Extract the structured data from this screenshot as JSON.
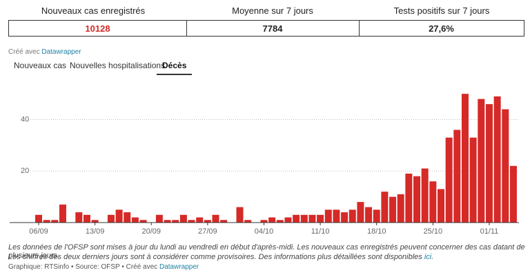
{
  "stats": {
    "headers": [
      "Nouveaux cas enregistrés",
      "Moyenne sur 7 jours",
      "Tests positifs sur 7 jours"
    ],
    "values": [
      "10128",
      "7784",
      "27,6%"
    ]
  },
  "credit": {
    "text": "Créé avec",
    "link": "Datawrapper"
  },
  "tabs": [
    "Nouveaux cas",
    "Nouvelles hospitalisations",
    "Décès"
  ],
  "active_tab": "Décès",
  "chart_data": {
    "type": "bar",
    "color": "#d52a27",
    "categories": [
      "06/09",
      null,
      null,
      null,
      null,
      null,
      null,
      "13/09",
      null,
      null,
      null,
      null,
      null,
      null,
      "20/09",
      null,
      null,
      null,
      null,
      null,
      null,
      "27/09",
      null,
      null,
      null,
      null,
      null,
      null,
      "04/10",
      null,
      null,
      null,
      null,
      null,
      null,
      "11/10",
      null,
      null,
      null,
      null,
      null,
      null,
      "18/10",
      null,
      null,
      null,
      null,
      null,
      null,
      "25/10",
      null,
      null,
      null,
      null,
      null,
      null,
      "01/11",
      null,
      null,
      null
    ],
    "values": [
      3,
      1,
      1,
      7,
      0,
      4,
      3,
      1,
      0,
      3,
      5,
      4,
      2,
      1,
      0,
      3,
      1,
      1,
      3,
      1,
      2,
      1,
      3,
      1,
      0,
      6,
      1,
      0,
      1,
      2,
      1,
      2,
      3,
      3,
      3,
      3,
      5,
      5,
      4,
      5,
      8,
      6,
      5,
      12,
      10,
      11,
      19,
      18,
      21,
      16,
      13,
      33,
      36,
      50,
      33,
      48,
      46,
      49,
      44,
      22
    ],
    "ylim": [
      0,
      57
    ],
    "yticks": [
      20,
      40
    ],
    "grid": true
  },
  "notes": {
    "line1": "Les données de l'OFSP sont mises à jour du lundi au vendredi en début d'après-midi. Les nouveaux cas enregistrés peuvent concerner des cas datant de plusieurs jours.",
    "line2": "Les chiffres des deux derniers jours sont à considérer comme provisoires. Des informations plus détaillées sont disponibles",
    "line2_link": "ici.",
    "byline": "Graphique: RTSinfo • Source: OFSP • Créé avec",
    "byline_link": "Datawrapper"
  }
}
